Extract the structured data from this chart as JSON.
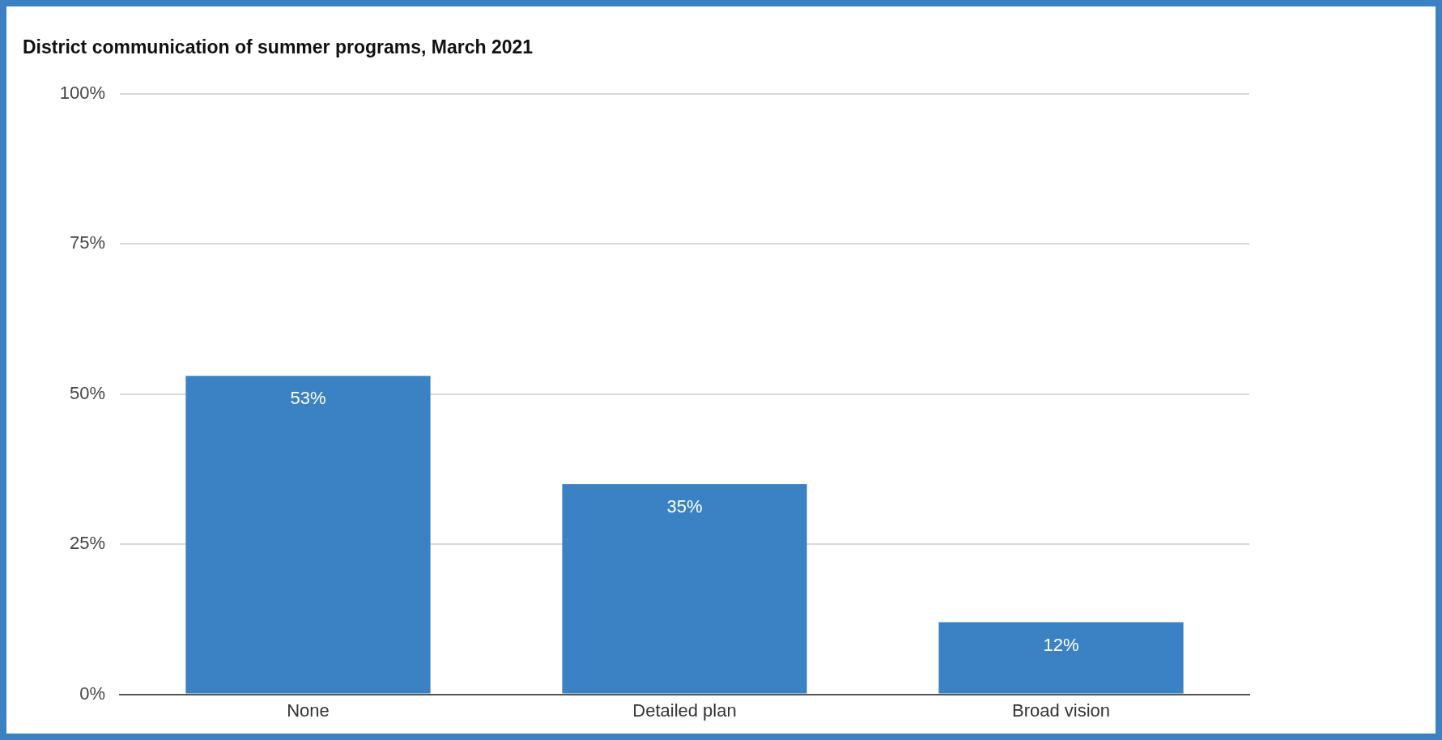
{
  "chart_data": {
    "type": "bar",
    "title": "District communication of summer programs, March 2021",
    "categories": [
      "None",
      "Detailed plan",
      "Broad vision"
    ],
    "values": [
      53,
      35,
      12
    ],
    "color": "#3b82c4",
    "value_labels": [
      "53%",
      "35%",
      "12%"
    ],
    "ylim": [
      0,
      100
    ],
    "yticks": [
      {
        "value": 0,
        "label": "0%"
      },
      {
        "value": 25,
        "label": "25%"
      },
      {
        "value": 50,
        "label": "50%"
      },
      {
        "value": 75,
        "label": "75%"
      },
      {
        "value": 100,
        "label": "100%"
      }
    ],
    "grid": "y",
    "legend": false
  }
}
